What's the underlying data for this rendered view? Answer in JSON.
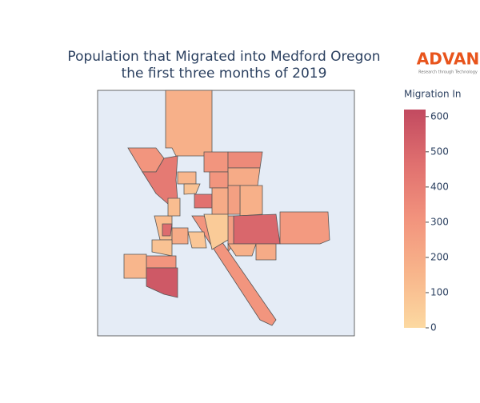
{
  "chart_data": {
    "type": "choropleth",
    "title": [
      "Population that Migrated into Medford Oregon",
      "the first three months of 2019"
    ],
    "logo": {
      "name": "ADVAN",
      "tagline": "Research through Technology"
    },
    "colorbar_title": "Migration In",
    "clim": [
      0,
      620
    ],
    "cticks": [
      0,
      100,
      200,
      300,
      400,
      500,
      600
    ],
    "colorscale": [
      "#fcd9a1",
      "#f8b58b",
      "#f2937d",
      "#e0706f",
      "#c24a60"
    ],
    "values": [
      180,
      300,
      420,
      300,
      350,
      200,
      300,
      150,
      460,
      100,
      180,
      250,
      200,
      280,
      500,
      260,
      180,
      200,
      300,
      120,
      480,
      200,
      80,
      100,
      60,
      300,
      150,
      560,
      120
    ]
  }
}
